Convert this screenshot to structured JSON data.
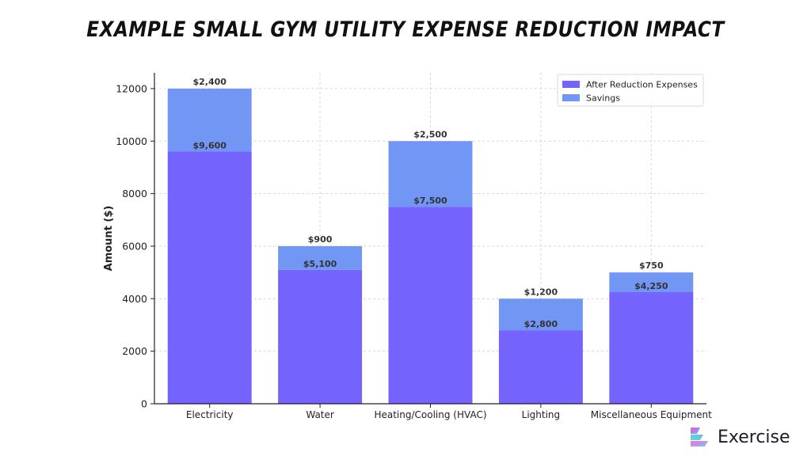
{
  "page": {
    "title": "EXAMPLE SMALL GYM UTILITY EXPENSE REDUCTION IMPACT",
    "brand": "Exercise"
  },
  "colors": {
    "after_reduction": "#7563fe",
    "savings": "#7196f4",
    "grid": "#cfcfcf",
    "axis": "#222222"
  },
  "chart_data": {
    "type": "bar",
    "stacked": true,
    "title": "EXAMPLE SMALL GYM UTILITY EXPENSE REDUCTION IMPACT",
    "xlabel": "",
    "ylabel": "Amount ($)",
    "ylim": [
      0,
      12600
    ],
    "yticks": [
      0,
      2000,
      4000,
      6000,
      8000,
      10000,
      12000
    ],
    "grid": true,
    "legend_position": "top-right",
    "categories": [
      "Electricity",
      "Water",
      "Heating/Cooling (HVAC)",
      "Lighting",
      "Miscellaneous Equipment"
    ],
    "series": [
      {
        "name": "After Reduction Expenses",
        "color": "#7563fe",
        "values": [
          9600,
          5100,
          7500,
          2800,
          4250
        ],
        "labels": [
          "$9,600",
          "$5,100",
          "$7,500",
          "$2,800",
          "$4,250"
        ]
      },
      {
        "name": "Savings",
        "color": "#7196f4",
        "values": [
          2400,
          900,
          2500,
          1200,
          750
        ],
        "labels": [
          "$2,400",
          "$900",
          "$2,500",
          "$1,200",
          "$750"
        ]
      }
    ]
  }
}
